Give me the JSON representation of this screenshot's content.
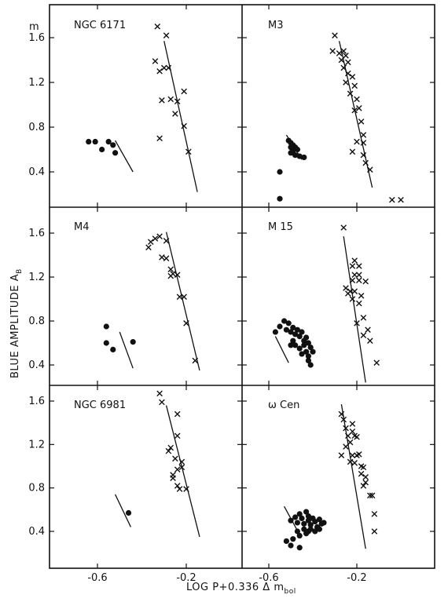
{
  "figure": {
    "ylabel": "BLUE AMPLITUDE A",
    "ylabel_sub": "B",
    "xlabel_main": "LOG P+0.336 Δ m",
    "xlabel_sub": "bol",
    "unit_label": "m",
    "ink_color": "#111111",
    "background": "#ffffff"
  },
  "chart_data": [
    {
      "type": "scatter",
      "panel": "NGC 6171",
      "xlim": [
        -0.78,
        0.02
      ],
      "ylim": [
        0.1,
        1.8
      ],
      "xticks": [
        -0.6,
        -0.2
      ],
      "yticks": [
        0.4,
        0.8,
        1.2,
        1.6
      ],
      "series": [
        {
          "marker": "x",
          "points": [
            [
              -0.33,
              1.7
            ],
            [
              -0.29,
              1.62
            ],
            [
              -0.34,
              1.39
            ],
            [
              -0.32,
              1.3
            ],
            [
              -0.3,
              1.33
            ],
            [
              -0.28,
              1.33
            ],
            [
              -0.21,
              1.12
            ],
            [
              -0.31,
              1.04
            ],
            [
              -0.27,
              1.05
            ],
            [
              -0.24,
              1.03
            ],
            [
              -0.25,
              0.92
            ],
            [
              -0.21,
              0.81
            ],
            [
              -0.32,
              0.7
            ],
            [
              -0.19,
              0.58
            ]
          ]
        },
        {
          "marker": "dot",
          "points": [
            [
              -0.64,
              0.67
            ],
            [
              -0.61,
              0.67
            ],
            [
              -0.58,
              0.6
            ],
            [
              -0.55,
              0.67
            ],
            [
              -0.53,
              0.64
            ],
            [
              -0.52,
              0.57
            ]
          ]
        }
      ],
      "lines": [
        [
          [
            -0.3,
            1.57
          ],
          [
            -0.15,
            0.22
          ]
        ],
        [
          [
            -0.52,
            0.68
          ],
          [
            -0.44,
            0.4
          ]
        ]
      ]
    },
    {
      "type": "scatter",
      "panel": "M3",
      "xlim": [
        -0.78,
        0.02
      ],
      "ylim": [
        0.1,
        1.8
      ],
      "xticks": [
        -0.6,
        -0.2
      ],
      "yticks": [
        0.4,
        0.8,
        1.2,
        1.6
      ],
      "series": [
        {
          "marker": "x",
          "points": [
            [
              -0.3,
              1.62
            ],
            [
              -0.31,
              1.48
            ],
            [
              -0.28,
              1.46
            ],
            [
              -0.26,
              1.48
            ],
            [
              -0.25,
              1.44
            ],
            [
              -0.27,
              1.4
            ],
            [
              -0.24,
              1.38
            ],
            [
              -0.26,
              1.33
            ],
            [
              -0.24,
              1.28
            ],
            [
              -0.25,
              1.2
            ],
            [
              -0.22,
              1.25
            ],
            [
              -0.21,
              1.17
            ],
            [
              -0.23,
              1.1
            ],
            [
              -0.2,
              1.05
            ],
            [
              -0.21,
              0.95
            ],
            [
              -0.19,
              0.97
            ],
            [
              -0.18,
              0.85
            ],
            [
              -0.17,
              0.73
            ],
            [
              -0.17,
              0.66
            ],
            [
              -0.17,
              0.55
            ],
            [
              -0.16,
              0.48
            ],
            [
              -0.2,
              0.67
            ],
            [
              -0.22,
              0.58
            ],
            [
              -0.14,
              0.42
            ],
            [
              -0.04,
              0.15
            ],
            [
              0.0,
              0.15
            ]
          ]
        },
        {
          "marker": "dot",
          "points": [
            [
              -0.51,
              0.68
            ],
            [
              -0.5,
              0.66
            ],
            [
              -0.49,
              0.64
            ],
            [
              -0.5,
              0.62
            ],
            [
              -0.48,
              0.62
            ],
            [
              -0.49,
              0.59
            ],
            [
              -0.47,
              0.6
            ],
            [
              -0.5,
              0.57
            ],
            [
              -0.48,
              0.55
            ],
            [
              -0.46,
              0.54
            ],
            [
              -0.44,
              0.53
            ],
            [
              -0.55,
              0.4
            ],
            [
              -0.55,
              0.16
            ]
          ]
        }
      ],
      "lines": [
        [
          [
            -0.28,
            1.57
          ],
          [
            -0.13,
            0.26
          ]
        ],
        [
          [
            -0.52,
            0.73
          ],
          [
            -0.45,
            0.51
          ]
        ]
      ]
    },
    {
      "type": "scatter",
      "panel": "M4",
      "xlim": [
        -0.78,
        0.02
      ],
      "ylim": [
        0.2,
        1.8
      ],
      "xticks": [
        -0.6,
        -0.2
      ],
      "yticks": [
        0.4,
        0.8,
        1.2,
        1.6
      ],
      "series": [
        {
          "marker": "x",
          "points": [
            [
              -0.37,
              1.47
            ],
            [
              -0.36,
              1.52
            ],
            [
              -0.34,
              1.55
            ],
            [
              -0.32,
              1.57
            ],
            [
              -0.29,
              1.53
            ],
            [
              -0.31,
              1.38
            ],
            [
              -0.29,
              1.37
            ],
            [
              -0.27,
              1.27
            ],
            [
              -0.26,
              1.23
            ],
            [
              -0.27,
              1.21
            ],
            [
              -0.24,
              1.22
            ],
            [
              -0.23,
              1.02
            ],
            [
              -0.21,
              1.02
            ],
            [
              -0.2,
              0.78
            ],
            [
              -0.16,
              0.44
            ]
          ]
        },
        {
          "marker": "dot",
          "points": [
            [
              -0.56,
              0.75
            ],
            [
              -0.56,
              0.6
            ],
            [
              -0.53,
              0.54
            ],
            [
              -0.44,
              0.61
            ]
          ]
        }
      ],
      "lines": [
        [
          [
            -0.29,
            1.61
          ],
          [
            -0.14,
            0.35
          ]
        ],
        [
          [
            -0.5,
            0.7
          ],
          [
            -0.44,
            0.37
          ]
        ]
      ]
    },
    {
      "type": "scatter",
      "panel": "M 15",
      "xlim": [
        -0.78,
        0.02
      ],
      "ylim": [
        0.2,
        1.8
      ],
      "xticks": [
        -0.6,
        -0.2
      ],
      "yticks": [
        0.4,
        0.8,
        1.2,
        1.6
      ],
      "series": [
        {
          "marker": "x",
          "points": [
            [
              -0.26,
              1.65
            ],
            [
              -0.21,
              1.35
            ],
            [
              -0.19,
              1.3
            ],
            [
              -0.22,
              1.3
            ],
            [
              -0.21,
              1.22
            ],
            [
              -0.19,
              1.22
            ],
            [
              -0.22,
              1.17
            ],
            [
              -0.19,
              1.17
            ],
            [
              -0.16,
              1.16
            ],
            [
              -0.25,
              1.1
            ],
            [
              -0.23,
              1.07
            ],
            [
              -0.21,
              1.07
            ],
            [
              -0.24,
              1.05
            ],
            [
              -0.22,
              1.0
            ],
            [
              -0.19,
              0.96
            ],
            [
              -0.18,
              1.03
            ],
            [
              -0.2,
              0.78
            ],
            [
              -0.17,
              0.83
            ],
            [
              -0.15,
              0.72
            ],
            [
              -0.17,
              0.67
            ],
            [
              -0.14,
              0.62
            ],
            [
              -0.11,
              0.42
            ]
          ]
        },
        {
          "marker": "dot",
          "points": [
            [
              -0.57,
              0.7
            ],
            [
              -0.55,
              0.75
            ],
            [
              -0.53,
              0.8
            ],
            [
              -0.51,
              0.78
            ],
            [
              -0.52,
              0.72
            ],
            [
              -0.5,
              0.7
            ],
            [
              -0.49,
              0.74
            ],
            [
              -0.48,
              0.68
            ],
            [
              -0.47,
              0.72
            ],
            [
              -0.46,
              0.66
            ],
            [
              -0.45,
              0.7
            ],
            [
              -0.44,
              0.62
            ],
            [
              -0.43,
              0.65
            ],
            [
              -0.44,
              0.58
            ],
            [
              -0.42,
              0.6
            ],
            [
              -0.41,
              0.56
            ],
            [
              -0.43,
              0.52
            ],
            [
              -0.42,
              0.48
            ],
            [
              -0.4,
              0.52
            ],
            [
              -0.42,
              0.44
            ],
            [
              -0.41,
              0.4
            ],
            [
              -0.48,
              0.58
            ],
            [
              -0.46,
              0.55
            ],
            [
              -0.45,
              0.5
            ],
            [
              -0.49,
              0.62
            ],
            [
              -0.5,
              0.58
            ]
          ]
        }
      ],
      "lines": [
        [
          [
            -0.26,
            1.57
          ],
          [
            -0.16,
            0.24
          ]
        ],
        [
          [
            -0.57,
            0.66
          ],
          [
            -0.51,
            0.42
          ]
        ]
      ]
    },
    {
      "type": "scatter",
      "panel": "NGC 6981",
      "xlim": [
        -0.78,
        0.02
      ],
      "ylim": [
        0.2,
        1.8
      ],
      "xticks": [
        -0.6,
        -0.2
      ],
      "yticks": [
        0.4,
        0.8,
        1.2,
        1.6
      ],
      "series": [
        {
          "marker": "x",
          "points": [
            [
              -0.32,
              1.67
            ],
            [
              -0.31,
              1.59
            ],
            [
              -0.24,
              1.48
            ],
            [
              -0.24,
              1.28
            ],
            [
              -0.27,
              1.17
            ],
            [
              -0.28,
              1.14
            ],
            [
              -0.25,
              1.07
            ],
            [
              -0.22,
              1.04
            ],
            [
              -0.22,
              0.99
            ],
            [
              -0.24,
              0.97
            ],
            [
              -0.26,
              0.92
            ],
            [
              -0.26,
              0.89
            ],
            [
              -0.24,
              0.82
            ],
            [
              -0.23,
              0.79
            ],
            [
              -0.2,
              0.79
            ]
          ]
        },
        {
          "marker": "dot",
          "points": [
            [
              -0.46,
              0.57
            ]
          ]
        }
      ],
      "lines": [
        [
          [
            -0.29,
            1.56
          ],
          [
            -0.14,
            0.35
          ]
        ],
        [
          [
            -0.52,
            0.74
          ],
          [
            -0.45,
            0.44
          ]
        ]
      ]
    },
    {
      "type": "scatter",
      "panel": "ω Cen",
      "xlim": [
        -0.78,
        0.02
      ],
      "ylim": [
        0.2,
        1.8
      ],
      "xticks": [
        -0.6,
        -0.2
      ],
      "yticks": [
        0.4,
        0.8,
        1.2,
        1.6
      ],
      "series": [
        {
          "marker": "x",
          "points": [
            [
              -0.27,
              1.48
            ],
            [
              -0.26,
              1.43
            ],
            [
              -0.25,
              1.35
            ],
            [
              -0.22,
              1.39
            ],
            [
              -0.22,
              1.32
            ],
            [
              -0.24,
              1.28
            ],
            [
              -0.21,
              1.28
            ],
            [
              -0.2,
              1.27
            ],
            [
              -0.23,
              1.22
            ],
            [
              -0.25,
              1.18
            ],
            [
              -0.27,
              1.1
            ],
            [
              -0.22,
              1.1
            ],
            [
              -0.2,
              1.1
            ],
            [
              -0.19,
              1.11
            ],
            [
              -0.23,
              1.04
            ],
            [
              -0.21,
              1.03
            ],
            [
              -0.18,
              1.0
            ],
            [
              -0.17,
              0.99
            ],
            [
              -0.18,
              0.93
            ],
            [
              -0.16,
              0.9
            ],
            [
              -0.17,
              0.82
            ],
            [
              -0.16,
              0.85
            ],
            [
              -0.14,
              0.73
            ],
            [
              -0.13,
              0.73
            ],
            [
              -0.12,
              0.56
            ],
            [
              -0.12,
              0.4
            ]
          ]
        },
        {
          "marker": "dot",
          "points": [
            [
              -0.5,
              0.5
            ],
            [
              -0.48,
              0.53
            ],
            [
              -0.47,
              0.48
            ],
            [
              -0.46,
              0.56
            ],
            [
              -0.45,
              0.52
            ],
            [
              -0.44,
              0.47
            ],
            [
              -0.43,
              0.58
            ],
            [
              -0.42,
              0.54
            ],
            [
              -0.42,
              0.5
            ],
            [
              -0.41,
              0.46
            ],
            [
              -0.4,
              0.52
            ],
            [
              -0.39,
              0.49
            ],
            [
              -0.38,
              0.44
            ],
            [
              -0.37,
              0.51
            ],
            [
              -0.36,
              0.47
            ],
            [
              -0.35,
              0.48
            ],
            [
              -0.44,
              0.42
            ],
            [
              -0.42,
              0.4
            ],
            [
              -0.47,
              0.4
            ],
            [
              -0.46,
              0.36
            ],
            [
              -0.43,
              0.38
            ],
            [
              -0.49,
              0.33
            ],
            [
              -0.52,
              0.31
            ],
            [
              -0.5,
              0.27
            ],
            [
              -0.46,
              0.25
            ],
            [
              -0.41,
              0.42
            ],
            [
              -0.39,
              0.4
            ],
            [
              -0.37,
              0.42
            ]
          ]
        }
      ],
      "lines": [
        [
          [
            -0.27,
            1.57
          ],
          [
            -0.16,
            0.24
          ]
        ],
        [
          [
            -0.53,
            0.63
          ],
          [
            -0.46,
            0.37
          ]
        ]
      ]
    }
  ]
}
